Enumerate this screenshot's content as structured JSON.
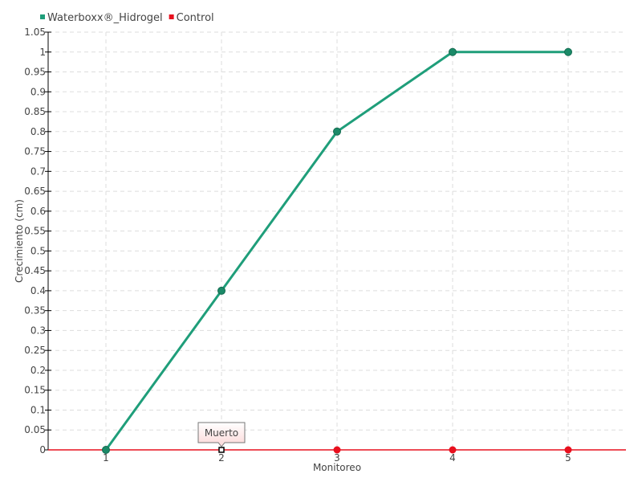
{
  "chart_data": {
    "type": "line",
    "title": "",
    "xlabel": "Monitoreo",
    "ylabel": "Crecimiento (cm)",
    "categories": [
      "1",
      "2",
      "3",
      "4",
      "5"
    ],
    "ylim": [
      0,
      1.05
    ],
    "yticks": [
      "0",
      "0.05",
      "0.1",
      "0.15",
      "0.2",
      "0.25",
      "0.3",
      "0.35",
      "0.4",
      "0.45",
      "0.5",
      "0.55",
      "0.6",
      "0.65",
      "0.7",
      "0.75",
      "0.8",
      "0.85",
      "0.9",
      "0.95",
      "1",
      "1.05"
    ],
    "grid": true,
    "legend_position": "top-left",
    "series": [
      {
        "name": "Waterboxx®_Hidrogel",
        "color": "#1f9e7a",
        "values": [
          0,
          0.4,
          0.8,
          1,
          1
        ]
      },
      {
        "name": "Control",
        "color": "#e8101e",
        "values": [
          0,
          0,
          0,
          0,
          0
        ]
      }
    ],
    "annotations": [
      {
        "text": "Muerto",
        "category": "2",
        "series": "Control",
        "value": 0
      }
    ]
  }
}
